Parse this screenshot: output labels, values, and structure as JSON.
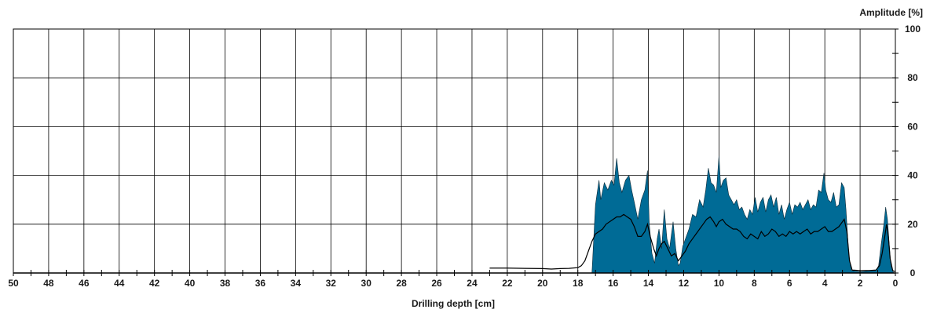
{
  "chart_data": {
    "type": "area",
    "xlabel": "Drilling depth [cm]",
    "ylabel": "Amplitude [%]",
    "xlim": [
      50,
      0
    ],
    "ylim": [
      0,
      100
    ],
    "x_axis_reversed": true,
    "grid": true,
    "y_axis_side": "right",
    "x_ticks": [
      50,
      48,
      46,
      44,
      42,
      40,
      38,
      36,
      34,
      32,
      30,
      28,
      26,
      24,
      22,
      20,
      18,
      16,
      14,
      12,
      10,
      8,
      6,
      4,
      2,
      0
    ],
    "y_ticks": [
      0,
      20,
      40,
      60,
      80,
      100
    ],
    "colors": {
      "area": "#006b96",
      "line": "#000000",
      "grid": "#000000"
    },
    "series": [
      {
        "kind": "area",
        "points": [
          [
            17.2,
            0
          ],
          [
            17.0,
            28
          ],
          [
            16.8,
            38
          ],
          [
            16.7,
            30
          ],
          [
            16.5,
            37
          ],
          [
            16.3,
            34
          ],
          [
            16.1,
            38
          ],
          [
            15.95,
            36
          ],
          [
            15.8,
            47
          ],
          [
            15.65,
            37
          ],
          [
            15.5,
            33
          ],
          [
            15.3,
            38
          ],
          [
            15.1,
            40
          ],
          [
            14.95,
            34
          ],
          [
            14.8,
            29
          ],
          [
            14.6,
            22
          ],
          [
            14.4,
            30
          ],
          [
            14.2,
            34
          ],
          [
            14.05,
            42
          ],
          [
            13.95,
            20
          ],
          [
            13.8,
            8
          ],
          [
            13.65,
            4
          ],
          [
            13.5,
            14
          ],
          [
            13.4,
            18
          ],
          [
            13.25,
            10
          ],
          [
            13.1,
            26
          ],
          [
            12.95,
            14
          ],
          [
            12.8,
            10
          ],
          [
            12.6,
            21
          ],
          [
            12.45,
            10
          ],
          [
            12.3,
            3
          ],
          [
            12.2,
            4
          ],
          [
            12.05,
            11
          ],
          [
            11.9,
            14
          ],
          [
            11.7,
            18
          ],
          [
            11.5,
            24
          ],
          [
            11.3,
            23
          ],
          [
            11.1,
            30
          ],
          [
            10.9,
            27
          ],
          [
            10.75,
            34
          ],
          [
            10.6,
            43
          ],
          [
            10.45,
            37
          ],
          [
            10.3,
            36
          ],
          [
            10.15,
            33
          ],
          [
            10.0,
            48
          ],
          [
            9.9,
            35
          ],
          [
            9.75,
            38
          ],
          [
            9.6,
            39
          ],
          [
            9.45,
            32
          ],
          [
            9.3,
            30
          ],
          [
            9.15,
            28
          ],
          [
            9.0,
            30
          ],
          [
            8.85,
            26
          ],
          [
            8.7,
            27
          ],
          [
            8.55,
            24
          ],
          [
            8.4,
            22
          ],
          [
            8.25,
            26
          ],
          [
            8.1,
            24
          ],
          [
            7.95,
            31
          ],
          [
            7.8,
            25
          ],
          [
            7.65,
            29
          ],
          [
            7.5,
            31
          ],
          [
            7.35,
            25
          ],
          [
            7.2,
            30
          ],
          [
            7.05,
            32
          ],
          [
            6.9,
            27
          ],
          [
            6.75,
            31
          ],
          [
            6.6,
            24
          ],
          [
            6.45,
            28
          ],
          [
            6.3,
            22
          ],
          [
            6.15,
            26
          ],
          [
            6.0,
            29
          ],
          [
            5.85,
            24
          ],
          [
            5.7,
            28
          ],
          [
            5.55,
            27
          ],
          [
            5.4,
            29
          ],
          [
            5.25,
            26
          ],
          [
            5.1,
            28
          ],
          [
            4.95,
            30
          ],
          [
            4.8,
            26
          ],
          [
            4.65,
            28
          ],
          [
            4.5,
            27
          ],
          [
            4.35,
            34
          ],
          [
            4.2,
            33
          ],
          [
            4.05,
            41
          ],
          [
            3.95,
            34
          ],
          [
            3.8,
            30
          ],
          [
            3.65,
            29
          ],
          [
            3.5,
            33
          ],
          [
            3.35,
            27
          ],
          [
            3.2,
            28
          ],
          [
            3.05,
            37
          ],
          [
            2.9,
            35
          ],
          [
            2.8,
            26
          ],
          [
            2.65,
            8
          ],
          [
            2.5,
            1
          ],
          [
            2.0,
            0.5
          ],
          [
            1.5,
            0.8
          ],
          [
            1.1,
            1
          ],
          [
            0.95,
            3
          ],
          [
            0.8,
            12
          ],
          [
            0.65,
            20
          ],
          [
            0.55,
            27
          ],
          [
            0.45,
            22
          ],
          [
            0.35,
            12
          ],
          [
            0.25,
            3
          ],
          [
            0.1,
            0
          ],
          [
            0,
            0
          ]
        ]
      },
      {
        "kind": "line",
        "points": [
          [
            23.0,
            2.0
          ],
          [
            22.0,
            2.0
          ],
          [
            21.0,
            1.9
          ],
          [
            20.0,
            1.8
          ],
          [
            19.5,
            1.6
          ],
          [
            19.0,
            1.8
          ],
          [
            18.5,
            1.9
          ],
          [
            18.0,
            2.2
          ],
          [
            17.8,
            3
          ],
          [
            17.6,
            5
          ],
          [
            17.4,
            9
          ],
          [
            17.2,
            13
          ],
          [
            17.0,
            16
          ],
          [
            16.8,
            17
          ],
          [
            16.6,
            18
          ],
          [
            16.4,
            20
          ],
          [
            16.2,
            21
          ],
          [
            16.0,
            22
          ],
          [
            15.8,
            23
          ],
          [
            15.6,
            23
          ],
          [
            15.4,
            24
          ],
          [
            15.2,
            23
          ],
          [
            15.0,
            22
          ],
          [
            14.8,
            19
          ],
          [
            14.6,
            15
          ],
          [
            14.4,
            15
          ],
          [
            14.2,
            17
          ],
          [
            14.05,
            20
          ],
          [
            13.9,
            15
          ],
          [
            13.7,
            10
          ],
          [
            13.55,
            7
          ],
          [
            13.4,
            10
          ],
          [
            13.25,
            12
          ],
          [
            13.1,
            13
          ],
          [
            12.9,
            10
          ],
          [
            12.7,
            7
          ],
          [
            12.5,
            8
          ],
          [
            12.3,
            5
          ],
          [
            12.1,
            7
          ],
          [
            11.9,
            9
          ],
          [
            11.7,
            12
          ],
          [
            11.5,
            14
          ],
          [
            11.3,
            16
          ],
          [
            11.1,
            18
          ],
          [
            10.9,
            20
          ],
          [
            10.7,
            22
          ],
          [
            10.5,
            23
          ],
          [
            10.3,
            21
          ],
          [
            10.15,
            19
          ],
          [
            10.0,
            21
          ],
          [
            9.8,
            22
          ],
          [
            9.6,
            20
          ],
          [
            9.4,
            19
          ],
          [
            9.2,
            18
          ],
          [
            9.0,
            18
          ],
          [
            8.8,
            17
          ],
          [
            8.6,
            15
          ],
          [
            8.4,
            14
          ],
          [
            8.2,
            16
          ],
          [
            8.0,
            15
          ],
          [
            7.8,
            14
          ],
          [
            7.6,
            17
          ],
          [
            7.4,
            15
          ],
          [
            7.2,
            16
          ],
          [
            7.0,
            18
          ],
          [
            6.8,
            17
          ],
          [
            6.6,
            15
          ],
          [
            6.4,
            16
          ],
          [
            6.2,
            15
          ],
          [
            6.0,
            17
          ],
          [
            5.8,
            16
          ],
          [
            5.6,
            17
          ],
          [
            5.4,
            16
          ],
          [
            5.2,
            17
          ],
          [
            5.0,
            18
          ],
          [
            4.8,
            16
          ],
          [
            4.6,
            17
          ],
          [
            4.4,
            17
          ],
          [
            4.2,
            18
          ],
          [
            4.0,
            19
          ],
          [
            3.8,
            17
          ],
          [
            3.6,
            17
          ],
          [
            3.4,
            18
          ],
          [
            3.2,
            19
          ],
          [
            3.0,
            21
          ],
          [
            2.9,
            22
          ],
          [
            2.75,
            17
          ],
          [
            2.6,
            5
          ],
          [
            2.45,
            1.2
          ],
          [
            2.0,
            1
          ],
          [
            1.5,
            1
          ],
          [
            1.1,
            1.2
          ],
          [
            0.9,
            3
          ],
          [
            0.75,
            8
          ],
          [
            0.6,
            15
          ],
          [
            0.5,
            20
          ],
          [
            0.4,
            15
          ],
          [
            0.3,
            6
          ],
          [
            0.15,
            1
          ],
          [
            0,
            0.5
          ]
        ]
      }
    ]
  }
}
